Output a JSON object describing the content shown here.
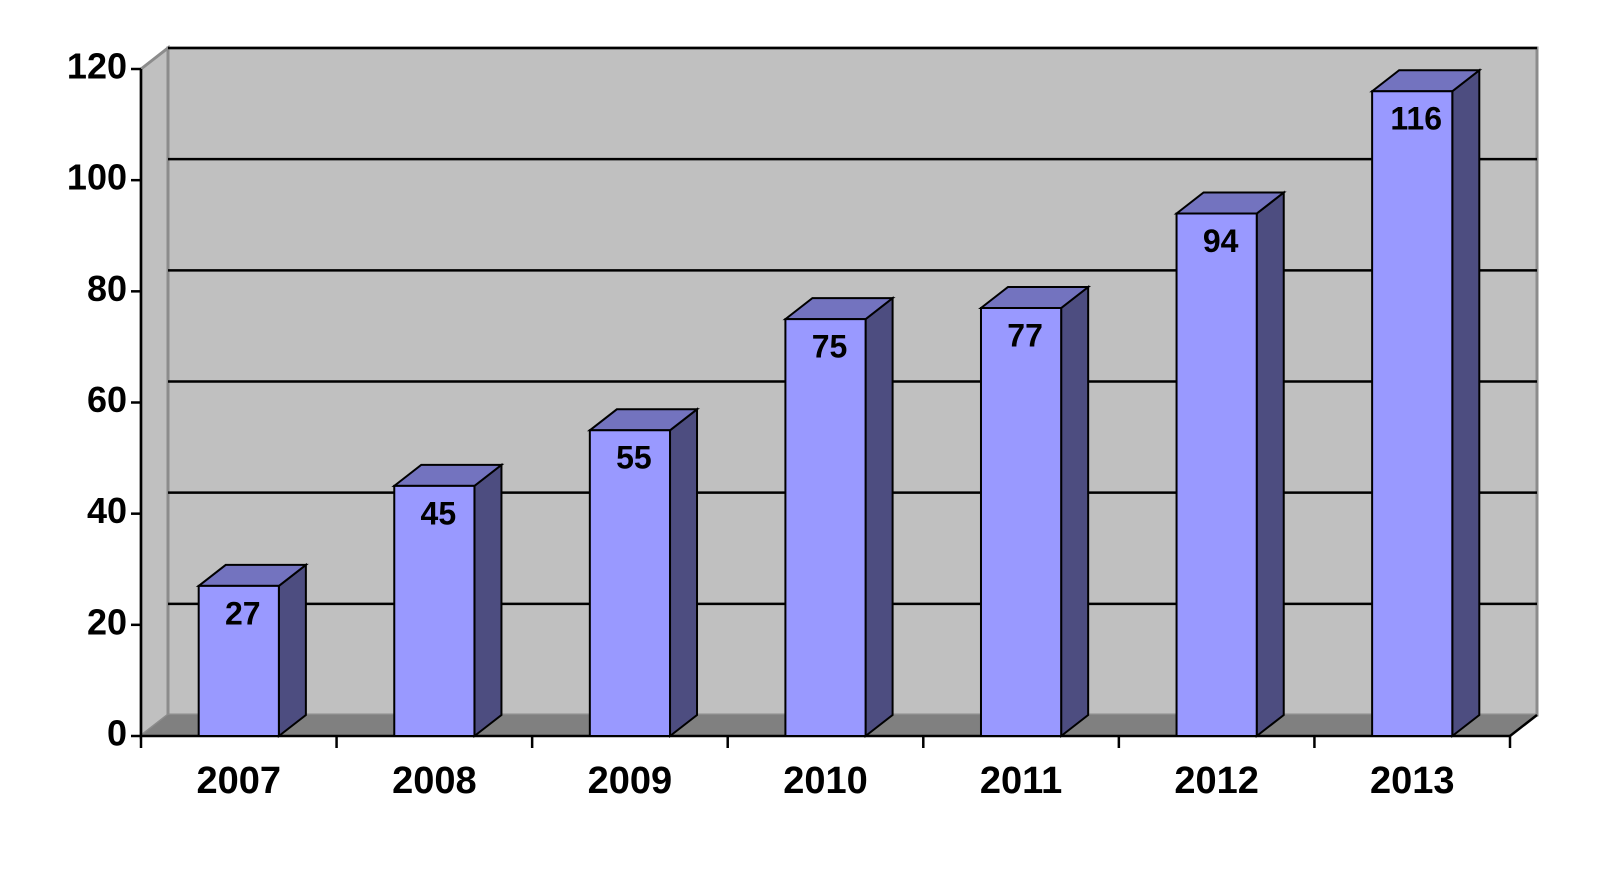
{
  "chart_data": {
    "type": "bar3d",
    "categories": [
      "2007",
      "2008",
      "2009",
      "2010",
      "2011",
      "2012",
      "2013"
    ],
    "values": [
      27,
      45,
      55,
      75,
      77,
      94,
      116
    ],
    "color": "#9999ff",
    "ylim": [
      0,
      120
    ],
    "yticks": [
      0,
      20,
      40,
      60,
      80,
      100,
      120
    ],
    "grid": true
  }
}
